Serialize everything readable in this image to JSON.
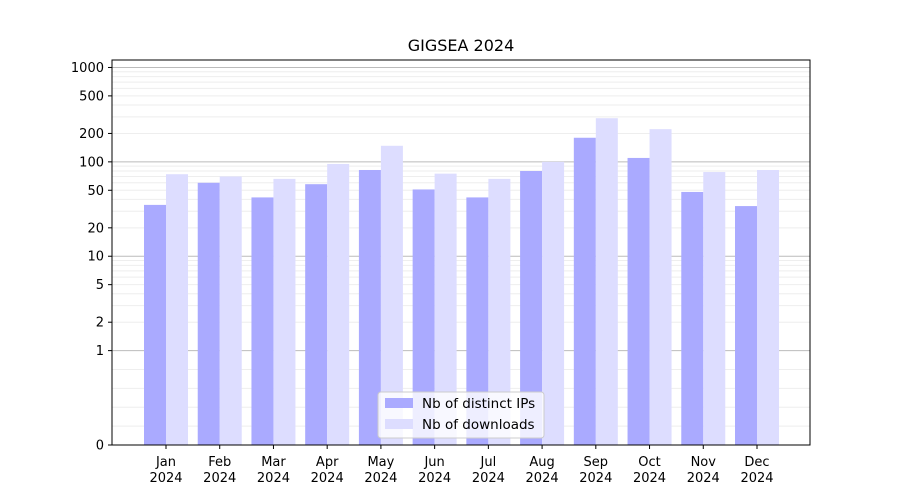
{
  "chart_data": {
    "type": "bar",
    "title": "GIGSEA 2024",
    "xlabel": "",
    "ylabel": "",
    "yscale": "symlog",
    "ylim": [
      0,
      1200
    ],
    "yticks": [
      0,
      1,
      2,
      5,
      10,
      20,
      50,
      100,
      200,
      500,
      1000
    ],
    "ytick_labels": [
      "0",
      "1",
      "2",
      "5",
      "10",
      "20",
      "50",
      "100",
      "200",
      "500",
      "1000"
    ],
    "grid": true,
    "legend_position": "bottom-center",
    "categories": [
      [
        "Jan",
        "2024"
      ],
      [
        "Feb",
        "2024"
      ],
      [
        "Mar",
        "2024"
      ],
      [
        "Apr",
        "2024"
      ],
      [
        "May",
        "2024"
      ],
      [
        "Jun",
        "2024"
      ],
      [
        "Jul",
        "2024"
      ],
      [
        "Aug",
        "2024"
      ],
      [
        "Sep",
        "2024"
      ],
      [
        "Oct",
        "2024"
      ],
      [
        "Nov",
        "2024"
      ],
      [
        "Dec",
        "2024"
      ]
    ],
    "series": [
      {
        "name": "Nb of distinct IPs",
        "color": "#aaaaff",
        "values": [
          35,
          60,
          42,
          58,
          82,
          51,
          42,
          80,
          180,
          110,
          48,
          34
        ]
      },
      {
        "name": "Nb of downloads",
        "color": "#ddddff",
        "values": [
          74,
          70,
          66,
          95,
          148,
          75,
          66,
          100,
          290,
          222,
          78,
          82
        ]
      }
    ]
  }
}
